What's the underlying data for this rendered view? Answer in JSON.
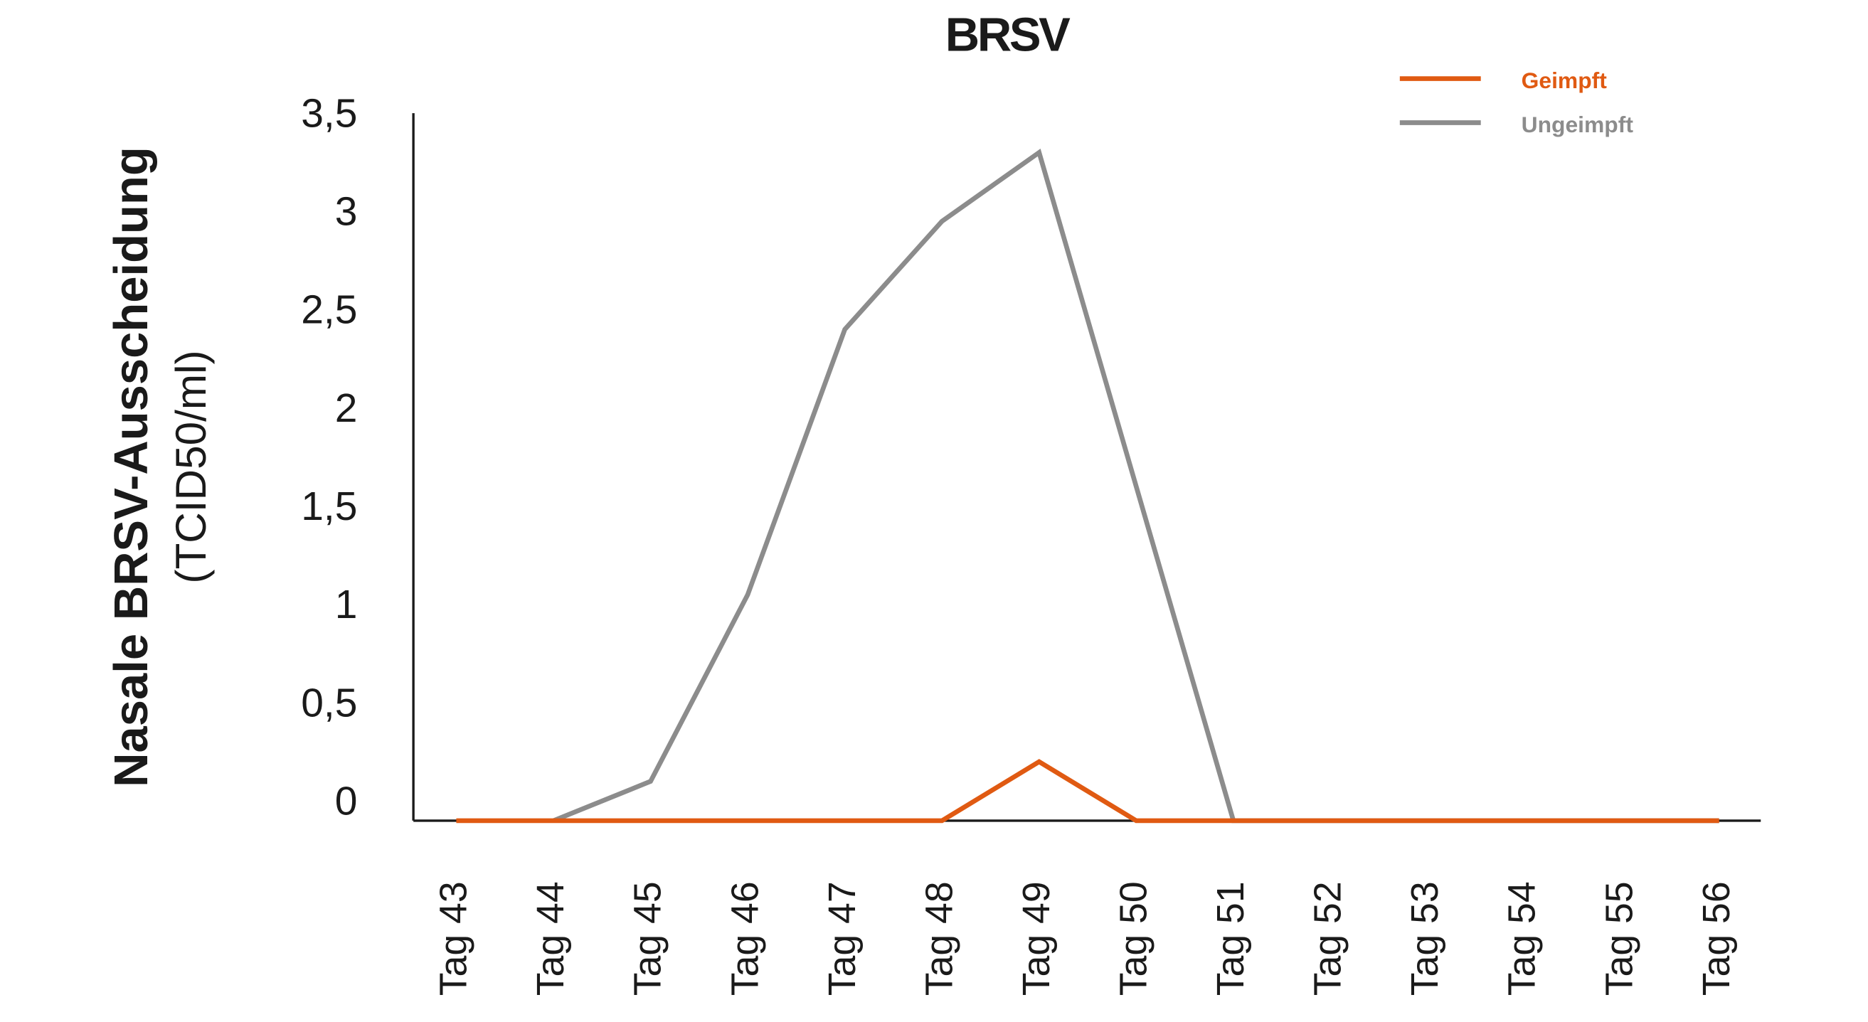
{
  "chart_data": {
    "type": "line",
    "title": "BRSV",
    "y_label": [
      "Nasale BRSV-Ausscheidung",
      "(TCID50/ml)"
    ],
    "categories": [
      "Tag 43",
      "Tag 44",
      "Tag 45",
      "Tag 46",
      "Tag 47",
      "Tag 48",
      "Tag 49",
      "Tag 50",
      "Tag 51",
      "Tag 52",
      "Tag 53",
      "Tag 54",
      "Tag 55",
      "Tag 56"
    ],
    "series": [
      {
        "name": "Ungeimpft",
        "color": "#8c8c8c",
        "values": [
          null,
          0,
          0.2,
          1.15,
          2.5,
          3.05,
          3.4,
          1.7,
          0,
          0,
          0,
          0,
          0,
          0
        ]
      },
      {
        "name": "Geimpft",
        "color": "#e05a12",
        "values": [
          0,
          0,
          0,
          0,
          0,
          0,
          0.3,
          0,
          0,
          0,
          0,
          0,
          0,
          0
        ]
      }
    ],
    "legend_order": [
      1,
      0
    ],
    "legend": "top-right",
    "ylim": [
      0,
      3.6
    ],
    "yticks": [
      0,
      {
        "value": 0.5,
        "label": "0,5"
      },
      1,
      {
        "value": 1.5,
        "label": "1,5"
      },
      2,
      {
        "value": 2.5,
        "label": "2,5"
      },
      3,
      {
        "value": 3.5,
        "label": "3,5"
      }
    ],
    "grid": false
  }
}
